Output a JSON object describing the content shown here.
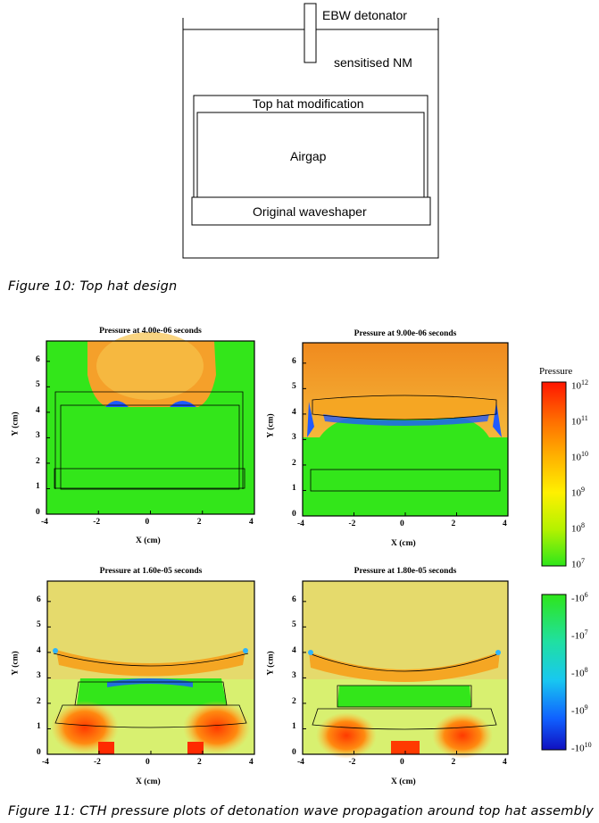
{
  "figure10": {
    "labels": {
      "detonator": "EBW detonator",
      "explosive": "sensitised NM",
      "top_hat": "Top hat modification",
      "airgap": "Airgap",
      "waveshaper": "Original waveshaper"
    },
    "caption": "Figure 10:  Top hat design"
  },
  "figure11": {
    "caption": "Figure 11:  CTH  pressure plots of detonation wave propagation around top hat assembly",
    "colors": {
      "high": "#ff2a00",
      "mid": "#f5a623",
      "low": "#33e61a",
      "negative": "#1f5bff"
    },
    "plots": [
      {
        "title": "Pressure at 4.00e-06 seconds",
        "xlabel": "X (cm)",
        "ylabel": "Y (cm)"
      },
      {
        "title": "Pressure at 9.00e-06 seconds",
        "xlabel": "X (cm)",
        "ylabel": "Y (cm)"
      },
      {
        "title": "Pressure at 1.60e-05 seconds",
        "xlabel": "X (cm)",
        "ylabel": "Y (cm)"
      },
      {
        "title": "Pressure at 1.80e-05 seconds",
        "xlabel": "X (cm)",
        "ylabel": "Y (cm)"
      }
    ],
    "x_ticks": [
      "-4",
      "-2",
      "0",
      "2",
      "4"
    ],
    "y_ticks": [
      "0",
      "1",
      "2",
      "3",
      "4",
      "5",
      "6"
    ],
    "colorbar_positive": {
      "title": "Pressure",
      "ticks": [
        {
          "base": "10",
          "exp": "12"
        },
        {
          "base": "10",
          "exp": "11"
        },
        {
          "base": "10",
          "exp": "10"
        },
        {
          "base": "10",
          "exp": "9"
        },
        {
          "base": "10",
          "exp": "8"
        },
        {
          "base": "10",
          "exp": "7"
        }
      ]
    },
    "colorbar_negative": {
      "ticks": [
        {
          "base": "-10",
          "exp": "6"
        },
        {
          "base": "-10",
          "exp": "7"
        },
        {
          "base": "-10",
          "exp": "8"
        },
        {
          "base": "-10",
          "exp": "9"
        },
        {
          "base": "-10",
          "exp": "10"
        }
      ]
    }
  }
}
